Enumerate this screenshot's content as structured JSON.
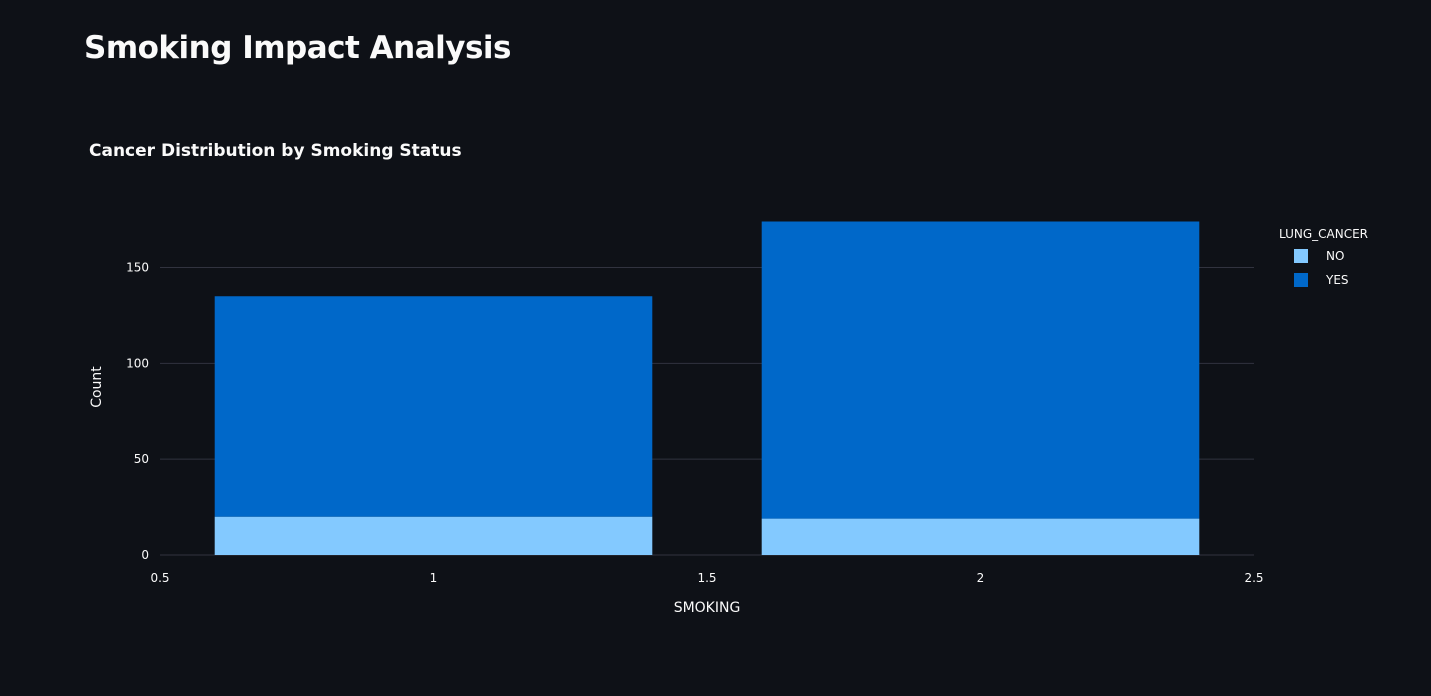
{
  "page": {
    "title": "Smoking Impact Analysis"
  },
  "chart_data": {
    "type": "bar",
    "barmode": "stack",
    "title": "Cancer Distribution by Smoking Status",
    "xlabel": "SMOKING",
    "ylabel": "Count",
    "x": [
      1,
      2
    ],
    "xlim": [
      0.5,
      2.5
    ],
    "ylim": [
      0,
      180
    ],
    "xticks": [
      "0.5",
      "1",
      "1.5",
      "2",
      "2.5"
    ],
    "yticks": [
      "0",
      "50",
      "100",
      "150"
    ],
    "grid": true,
    "legend": {
      "title": "LUNG_CANCER",
      "position": "top-right"
    },
    "series": [
      {
        "name": "NO",
        "color": "#83c9ff",
        "values": [
          20,
          19
        ]
      },
      {
        "name": "YES",
        "color": "#0068c9",
        "values": [
          115,
          155
        ]
      }
    ]
  },
  "colors": {
    "background": "#0e1117",
    "grid": "#31333f",
    "text": "#fafafa"
  }
}
